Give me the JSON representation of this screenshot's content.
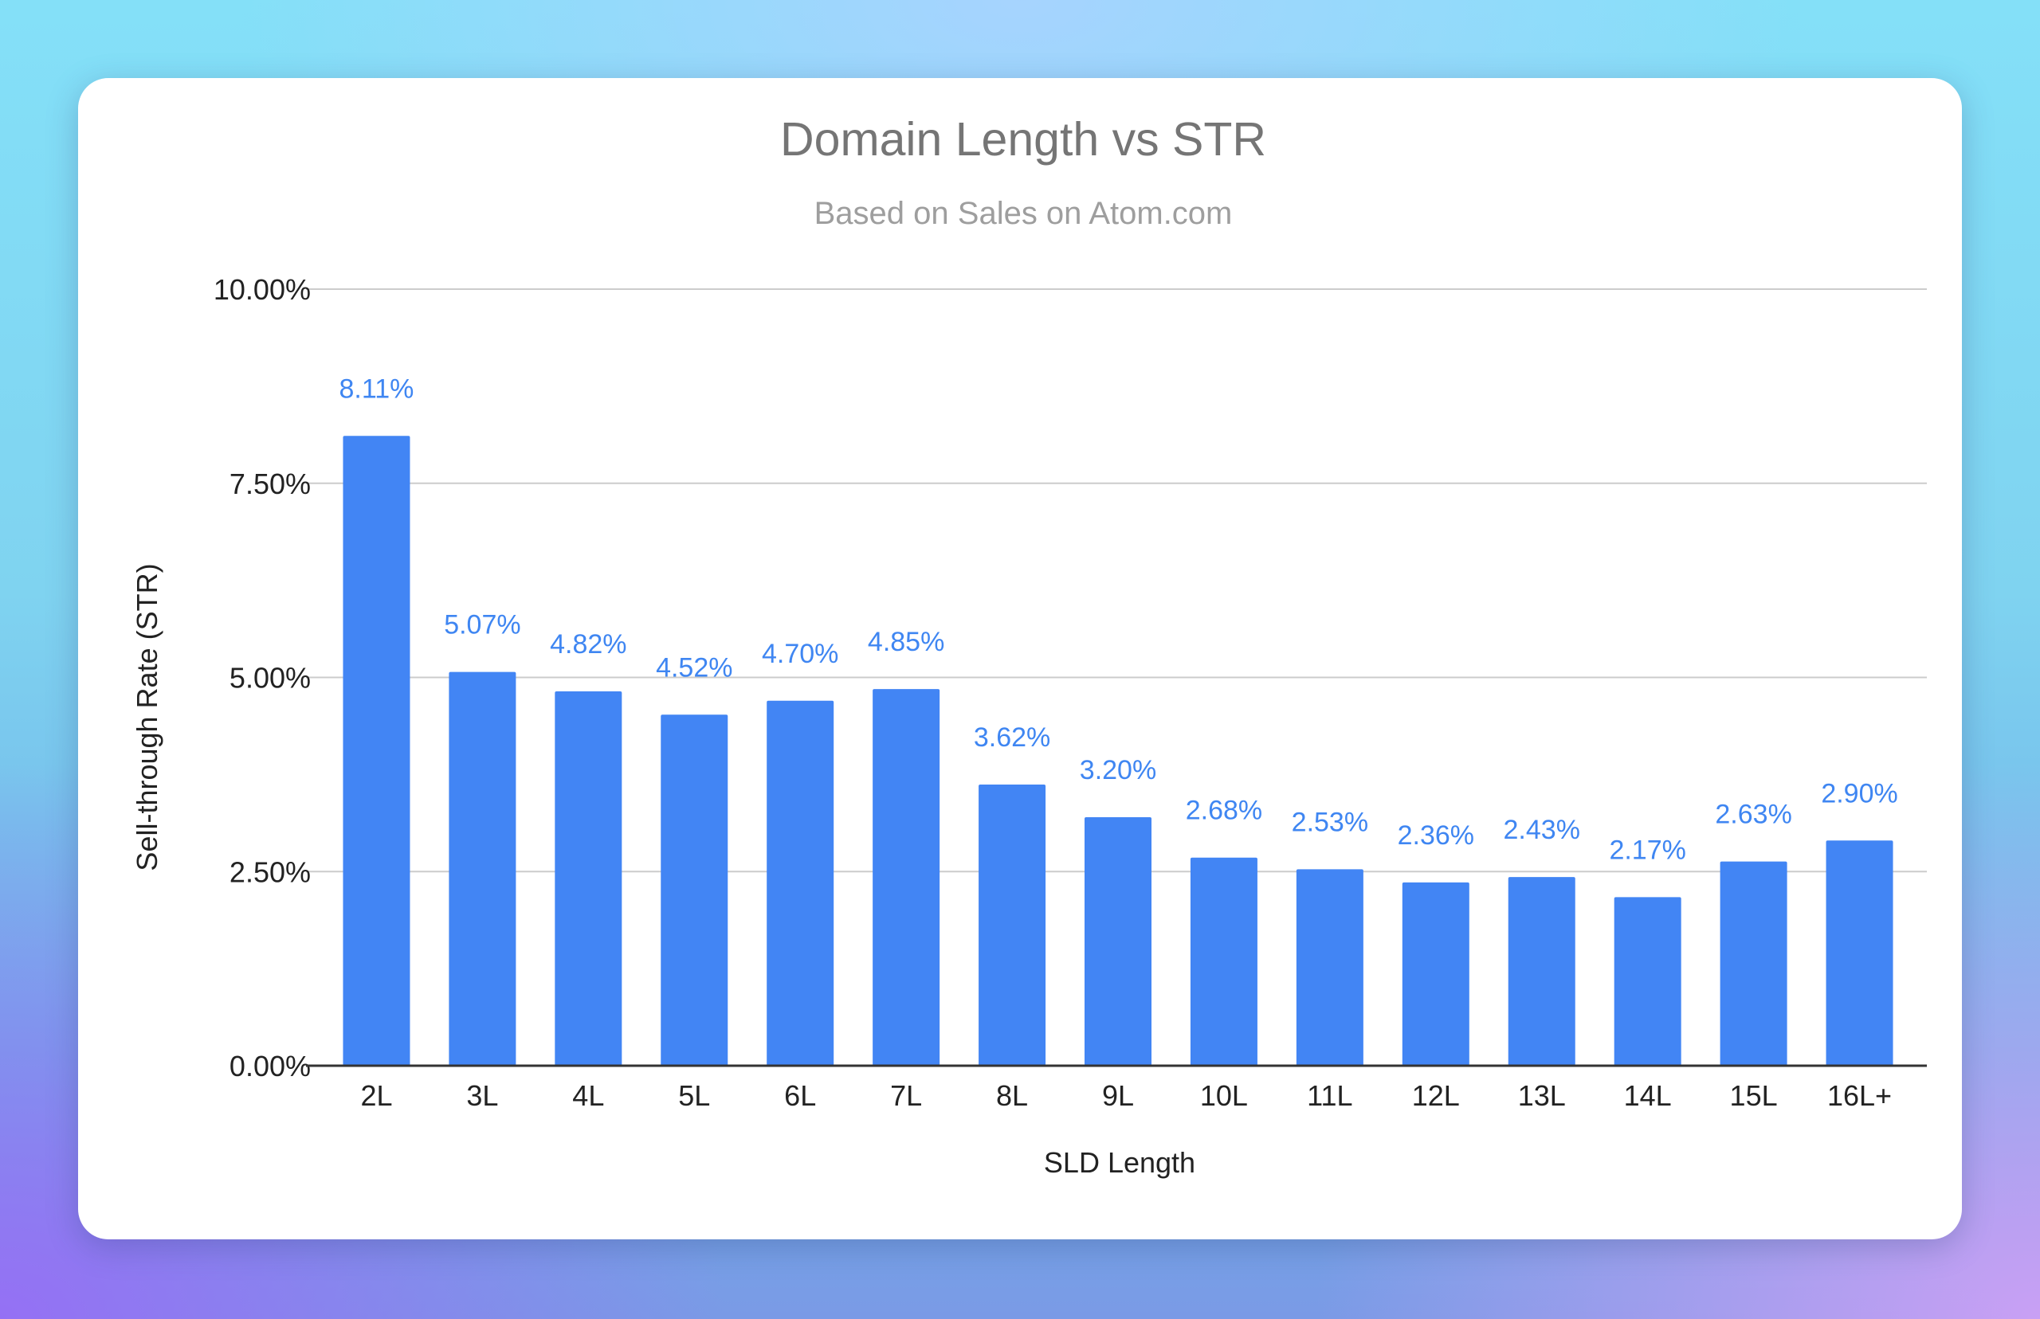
{
  "chart_data": {
    "type": "bar",
    "title": "Domain Length vs STR",
    "subtitle": "Based on Sales on Atom.com",
    "xlabel": "SLD Length",
    "ylabel": "Sell-through Rate (STR)",
    "categories": [
      "2L",
      "3L",
      "4L",
      "5L",
      "6L",
      "7L",
      "8L",
      "9L",
      "10L",
      "11L",
      "12L",
      "13L",
      "14L",
      "15L",
      "16L+"
    ],
    "values": [
      8.11,
      5.07,
      4.82,
      4.52,
      4.7,
      4.85,
      3.62,
      3.2,
      2.68,
      2.53,
      2.36,
      2.43,
      2.17,
      2.63,
      2.9
    ],
    "data_labels": [
      "8.11%",
      "5.07%",
      "4.82%",
      "4.52%",
      "4.70%",
      "4.85%",
      "3.62%",
      "3.20%",
      "2.68%",
      "2.53%",
      "2.36%",
      "2.43%",
      "2.17%",
      "2.63%",
      "2.90%"
    ],
    "ylim": [
      0,
      10
    ],
    "yticks": [
      0,
      2.5,
      5,
      7.5,
      10
    ],
    "ytick_labels": [
      "0.00%",
      "2.50%",
      "5.00%",
      "7.50%",
      "10.00%"
    ],
    "grid": true,
    "legend": "none",
    "colors": {
      "bar": "#4285f4",
      "data_label": "#3f86f2",
      "title": "#757575",
      "subtitle": "#9e9e9e",
      "gridline": "#cccccc"
    }
  }
}
